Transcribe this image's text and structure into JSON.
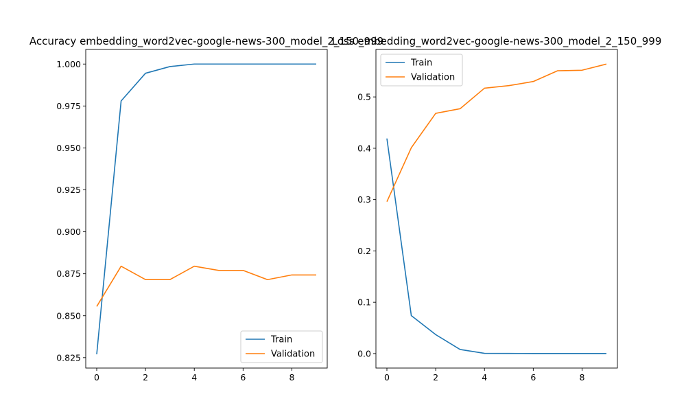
{
  "chart_data": [
    {
      "type": "line",
      "title": "Accuracy embedding_word2vec-google-news-300_model_2_150_999",
      "xlabel": "",
      "ylabel": "",
      "xlim": [
        -0.45,
        9.45
      ],
      "ylim": [
        0.8188,
        1.0087
      ],
      "xticks": [
        0,
        2,
        4,
        6,
        8
      ],
      "yticks": [
        0.825,
        0.85,
        0.875,
        0.9,
        0.925,
        0.95,
        0.975,
        1.0
      ],
      "ytick_labels": [
        "0.825",
        "0.850",
        "0.875",
        "0.900",
        "0.925",
        "0.950",
        "0.975",
        "1.000"
      ],
      "legend_position": "lower right",
      "series": [
        {
          "name": "Train",
          "color": "#1f77b4",
          "x": [
            0,
            1,
            2,
            3,
            4,
            5,
            6,
            7,
            8,
            9
          ],
          "values": [
            0.827,
            0.978,
            0.9945,
            0.9985,
            1.0,
            1.0,
            1.0,
            1.0,
            1.0,
            1.0
          ]
        },
        {
          "name": "Validation",
          "color": "#ff7f0e",
          "x": [
            0,
            1,
            2,
            3,
            4,
            5,
            6,
            7,
            8,
            9
          ],
          "values": [
            0.8555,
            0.8795,
            0.8715,
            0.8715,
            0.8795,
            0.877,
            0.877,
            0.8715,
            0.8743,
            0.8743
          ]
        }
      ]
    },
    {
      "type": "line",
      "title": "Loss embedding_word2vec-google-news-300_model_2_150_999",
      "xlabel": "",
      "ylabel": "",
      "xlim": [
        -0.45,
        9.45
      ],
      "ylim": [
        -0.0282,
        0.5925
      ],
      "xticks": [
        0,
        2,
        4,
        6,
        8
      ],
      "yticks": [
        0.0,
        0.1,
        0.2,
        0.3,
        0.4,
        0.5
      ],
      "ytick_labels": [
        "0.0",
        "0.1",
        "0.2",
        "0.3",
        "0.4",
        "0.5"
      ],
      "legend_position": "upper left",
      "series": [
        {
          "name": "Train",
          "color": "#1f77b4",
          "x": [
            0,
            1,
            2,
            3,
            4,
            5,
            6,
            7,
            8,
            9
          ],
          "values": [
            0.419,
            0.074,
            0.037,
            0.008,
            0.0005,
            0.0003,
            0.0002,
            0.0002,
            0.0001,
            0.0001
          ]
        },
        {
          "name": "Validation",
          "color": "#ff7f0e",
          "x": [
            0,
            1,
            2,
            3,
            4,
            5,
            6,
            7,
            8,
            9
          ],
          "values": [
            0.296,
            0.401,
            0.468,
            0.477,
            0.517,
            0.522,
            0.53,
            0.551,
            0.552,
            0.564
          ]
        }
      ]
    }
  ]
}
